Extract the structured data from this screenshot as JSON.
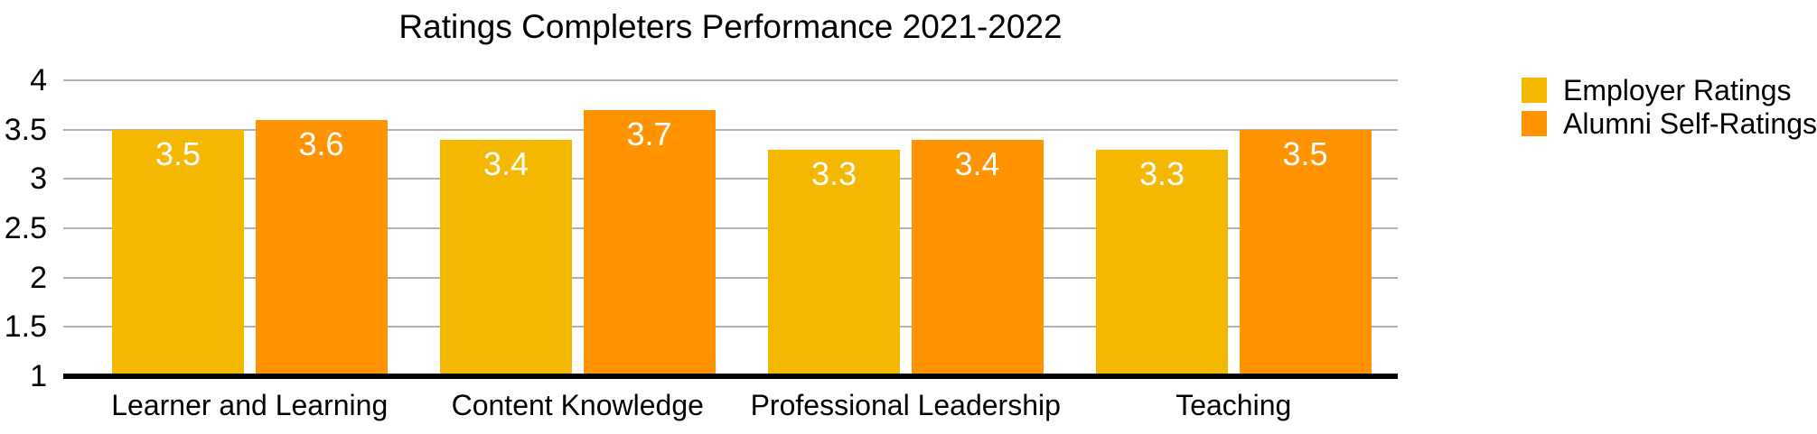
{
  "chart_data": {
    "type": "bar",
    "title": "Ratings Completers Performance 2021-2022",
    "categories": [
      "Learner and Learning",
      "Content Knowledge",
      "Professional Leadership",
      "Teaching"
    ],
    "series": [
      {
        "name": "Employer Ratings",
        "color": "#F5B800",
        "values": [
          3.5,
          3.4,
          3.3,
          3.3
        ]
      },
      {
        "name": "Alumni Self-Ratings",
        "color": "#FF9300",
        "values": [
          3.6,
          3.7,
          3.4,
          3.5
        ]
      }
    ],
    "xlabel": "",
    "ylabel": "",
    "ylim": [
      1,
      4
    ],
    "y_ticks": [
      "4",
      "3.5",
      "3",
      "2.5",
      "2",
      "1.5",
      "1"
    ],
    "grid": true,
    "legend_position": "right",
    "value_label_color": "#FFFFFF",
    "grid_color": "#B1B1B1",
    "axis_color": "#000000",
    "background": "#FFFFFF"
  }
}
